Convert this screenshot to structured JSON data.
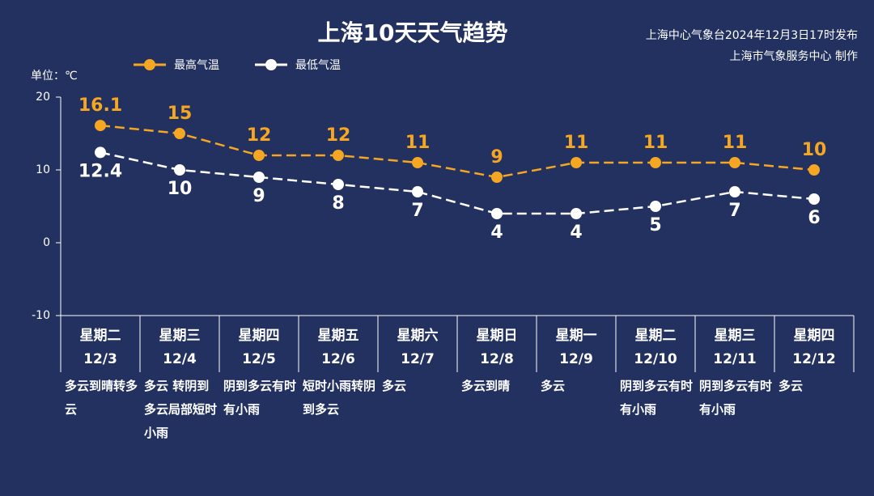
{
  "chart_data": {
    "type": "line",
    "title": "上海10天天气趋势",
    "source": "上海中心气象台2024年12月3日17时发布",
    "credit": "上海市气象服务中心 制作",
    "y_label": "单位：℃",
    "categories": [
      "星期二",
      "星期三",
      "星期四",
      "星期五",
      "星期六",
      "星期日",
      "星期一",
      "星期二",
      "星期三",
      "星期四"
    ],
    "dates": [
      "12/3",
      "12/4",
      "12/5",
      "12/6",
      "12/7",
      "12/8",
      "12/9",
      "12/10",
      "12/11",
      "12/12"
    ],
    "weather": [
      "多云到晴转多云",
      "多云 转阴到多云局部短时小雨",
      "阴到多云有时有小雨",
      "短时小雨转阴到多云",
      "多云",
      "多云到晴",
      "多云",
      "阴到多云有时有小雨",
      "阴到多云有时有小雨",
      "多云"
    ],
    "series": [
      {
        "name": "最高气温",
        "color": "#f5a623",
        "values": [
          16.1,
          15,
          12,
          12,
          11,
          9,
          11,
          11,
          11,
          10
        ]
      },
      {
        "name": "最低气温",
        "color": "#ffffff",
        "values": [
          12.4,
          10,
          9,
          8,
          7,
          4,
          4,
          5,
          7,
          6
        ]
      }
    ],
    "ylim": [
      -10,
      20
    ],
    "yticks": [
      -10,
      0,
      10,
      20
    ]
  }
}
